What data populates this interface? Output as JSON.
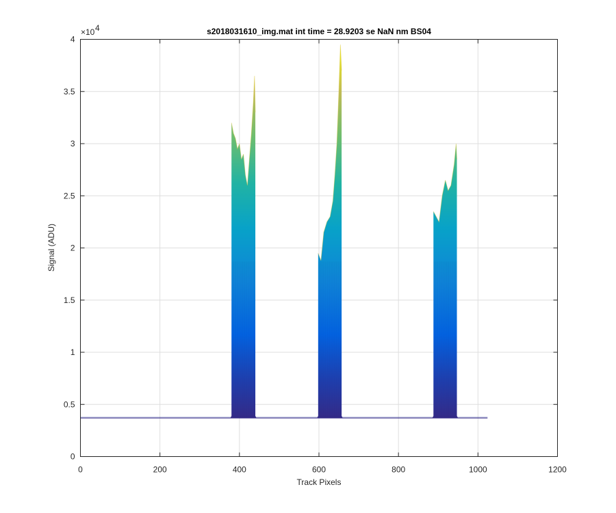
{
  "chart_data": {
    "type": "area",
    "title": "s2018031610_img.mat int time = 28.9203 se  NaN nm BS04",
    "xlabel": "Track Pixels",
    "ylabel": "Signal (ADU)",
    "xlim": [
      0,
      1200
    ],
    "ylim": [
      0,
      40000
    ],
    "x_ticks": [
      0,
      200,
      400,
      600,
      800,
      1000,
      1200
    ],
    "y_ticks": [
      0,
      5000,
      10000,
      15000,
      20000,
      25000,
      30000,
      35000,
      40000
    ],
    "y_tick_labels": [
      "0",
      "0.5",
      "1",
      "1.5",
      "2",
      "2.5",
      "3",
      "3.5",
      "4"
    ],
    "y_exponent_base": "×10",
    "y_exponent_power": "4",
    "grid": true,
    "baseline": 3700,
    "x_extent": [
      0,
      1024
    ],
    "peaks": [
      {
        "x_range": [
          380,
          440
        ],
        "envelope": [
          [
            380,
            32000
          ],
          [
            385,
            31000
          ],
          [
            390,
            30500
          ],
          [
            395,
            29500
          ],
          [
            400,
            30000
          ],
          [
            405,
            28500
          ],
          [
            410,
            29000
          ],
          [
            415,
            27000
          ],
          [
            420,
            26000
          ],
          [
            425,
            28500
          ],
          [
            430,
            31000
          ],
          [
            435,
            34000
          ],
          [
            438,
            36500
          ],
          [
            440,
            33000
          ]
        ]
      },
      {
        "x_range": [
          598,
          657
        ],
        "envelope": [
          [
            598,
            19500
          ],
          [
            605,
            18800
          ],
          [
            612,
            21500
          ],
          [
            620,
            22500
          ],
          [
            628,
            23000
          ],
          [
            635,
            24500
          ],
          [
            640,
            27000
          ],
          [
            645,
            30000
          ],
          [
            650,
            35000
          ],
          [
            654,
            39500
          ],
          [
            657,
            37000
          ]
        ]
      },
      {
        "x_range": [
          888,
          947
        ],
        "envelope": [
          [
            888,
            23500
          ],
          [
            895,
            23000
          ],
          [
            902,
            22500
          ],
          [
            910,
            25000
          ],
          [
            918,
            26500
          ],
          [
            925,
            25500
          ],
          [
            932,
            26000
          ],
          [
            940,
            28000
          ],
          [
            945,
            30000
          ],
          [
            947,
            28500
          ]
        ]
      }
    ]
  }
}
